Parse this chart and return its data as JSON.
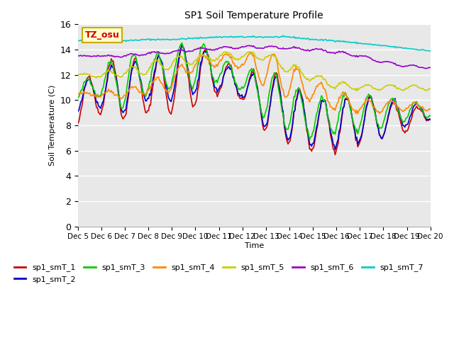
{
  "title": "SP1 Soil Temperature Profile",
  "xlabel": "Time",
  "ylabel": "Soil Temperature (C)",
  "ylim": [
    0,
    16
  ],
  "yticks": [
    0,
    2,
    4,
    6,
    8,
    10,
    12,
    14,
    16
  ],
  "bg_color": "#e8e8e8",
  "annotation_text": "TZ_osu",
  "annotation_bg": "#ffffcc",
  "annotation_border": "#ccaa00",
  "xtick_labels": [
    "Dec 5",
    "Dec 6",
    "Dec 7",
    "Dec 8",
    "Dec 9",
    "Dec 10",
    "Dec 11",
    "Dec 12",
    "Dec 13",
    "Dec 14",
    "Dec 15",
    "Dec 16",
    "Dec 17",
    "Dec 18",
    "Dec 19",
    "Dec 20"
  ],
  "legend_order": [
    "sp1_smT_1",
    "sp1_smT_2",
    "sp1_smT_3",
    "sp1_smT_4",
    "sp1_smT_5",
    "sp1_smT_6",
    "sp1_smT_7"
  ],
  "line_colors": {
    "sp1_smT_1": "#cc0000",
    "sp1_smT_2": "#0000cc",
    "sp1_smT_3": "#00cc00",
    "sp1_smT_4": "#ff8800",
    "sp1_smT_5": "#cccc00",
    "sp1_smT_6": "#9900cc",
    "sp1_smT_7": "#00cccc"
  }
}
